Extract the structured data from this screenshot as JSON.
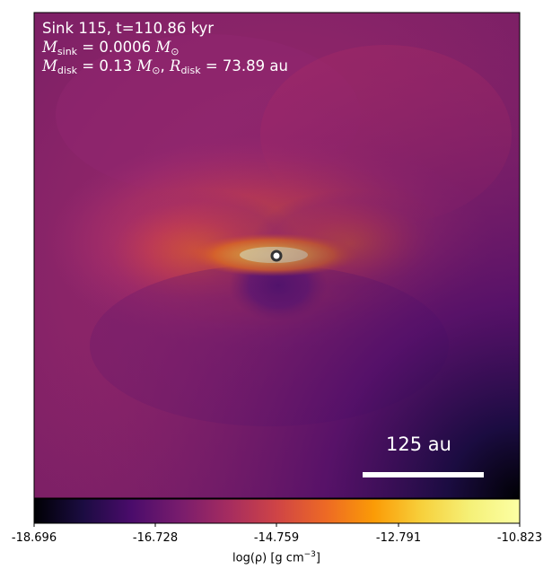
{
  "annotation": {
    "line1": "Sink 115, t=110.86 kyr",
    "msink_value": "0.0006",
    "mdisk_value": "0.13",
    "rdisk_value": "73.89"
  },
  "scale_bar": {
    "label": "125 au"
  },
  "colorbar": {
    "label": "log(ρ) [g cm",
    "label_exp": "−3",
    "label_close": "]",
    "tick_labels": [
      "-18.696",
      "-16.728",
      "-14.759",
      "-12.791",
      "-10.823"
    ],
    "colormap": "inferno"
  },
  "colors": {
    "frame": "#000000",
    "sink_marker_fill": "#ffffff",
    "sink_marker_ring": "#333333"
  }
}
